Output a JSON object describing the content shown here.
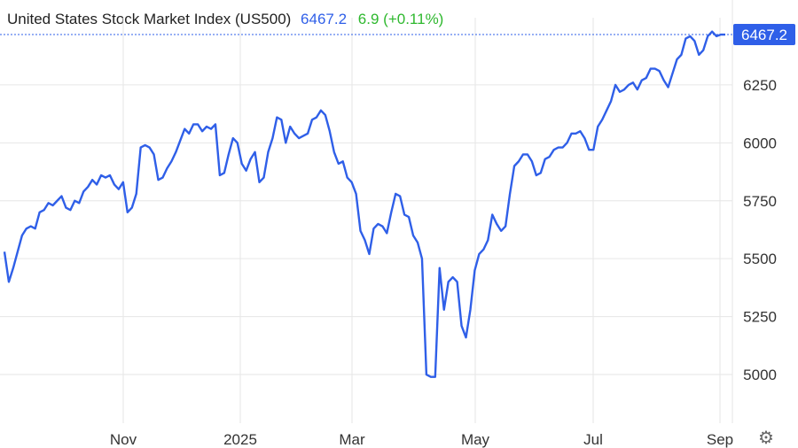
{
  "header": {
    "title": "United States Stock Market Index (US500)",
    "last": "6467.2",
    "change": "6.9",
    "change_pct": "(+0.11%)"
  },
  "colors": {
    "line": "#2f5fe8",
    "change_up": "#2eb82e",
    "grid": "#e6e6e6"
  },
  "icons": {
    "settings": "gear-icon"
  },
  "chart_data": {
    "type": "line",
    "title": "United States Stock Market Index (US500)",
    "last_value_label": "6467.2",
    "x_ticks": [
      "Nov",
      "2025",
      "Mar",
      "May",
      "Jul",
      "Sep"
    ],
    "y_ticks": [
      "5000",
      "5250",
      "5500",
      "5750",
      "6000",
      "6250"
    ],
    "ylim": [
      4790,
      6540
    ],
    "grid": true,
    "series": [
      {
        "values": [
          5530,
          5400,
          5460,
          5530,
          5600,
          5630,
          5640,
          5630,
          5700,
          5710,
          5740,
          5730,
          5750,
          5770,
          5720,
          5710,
          5750,
          5740,
          5790,
          5810,
          5840,
          5820,
          5860,
          5850,
          5860,
          5820,
          5800,
          5830,
          5700,
          5720,
          5780,
          5980,
          5990,
          5980,
          5950,
          5840,
          5850,
          5890,
          5920,
          5960,
          6010,
          6060,
          6040,
          6080,
          6080,
          6050,
          6070,
          6060,
          6080,
          5860,
          5870,
          5950,
          6020,
          6000,
          5910,
          5880,
          5930,
          5960,
          5830,
          5850,
          5960,
          6020,
          6110,
          6100,
          6000,
          6070,
          6040,
          6020,
          6030,
          6040,
          6100,
          6110,
          6140,
          6120,
          6050,
          5960,
          5910,
          5920,
          5850,
          5830,
          5780,
          5620,
          5580,
          5520,
          5630,
          5650,
          5640,
          5610,
          5700,
          5780,
          5770,
          5690,
          5680,
          5600,
          5570,
          5500,
          5000,
          4990,
          4990,
          5460,
          5280,
          5400,
          5420,
          5400,
          5210,
          5160,
          5280,
          5450,
          5520,
          5540,
          5580,
          5690,
          5650,
          5620,
          5640,
          5780,
          5900,
          5920,
          5950,
          5950,
          5920,
          5860,
          5870,
          5930,
          5940,
          5970,
          5980,
          5980,
          6000,
          6040,
          6040,
          6050,
          6020,
          5970,
          5970,
          6070,
          6100,
          6140,
          6180,
          6250,
          6220,
          6230,
          6250,
          6260,
          6230,
          6270,
          6280,
          6320,
          6320,
          6310,
          6270,
          6240,
          6300,
          6360,
          6380,
          6450,
          6460,
          6440,
          6380,
          6400,
          6460,
          6480,
          6460,
          6467.2,
          6467.2
        ]
      }
    ]
  }
}
